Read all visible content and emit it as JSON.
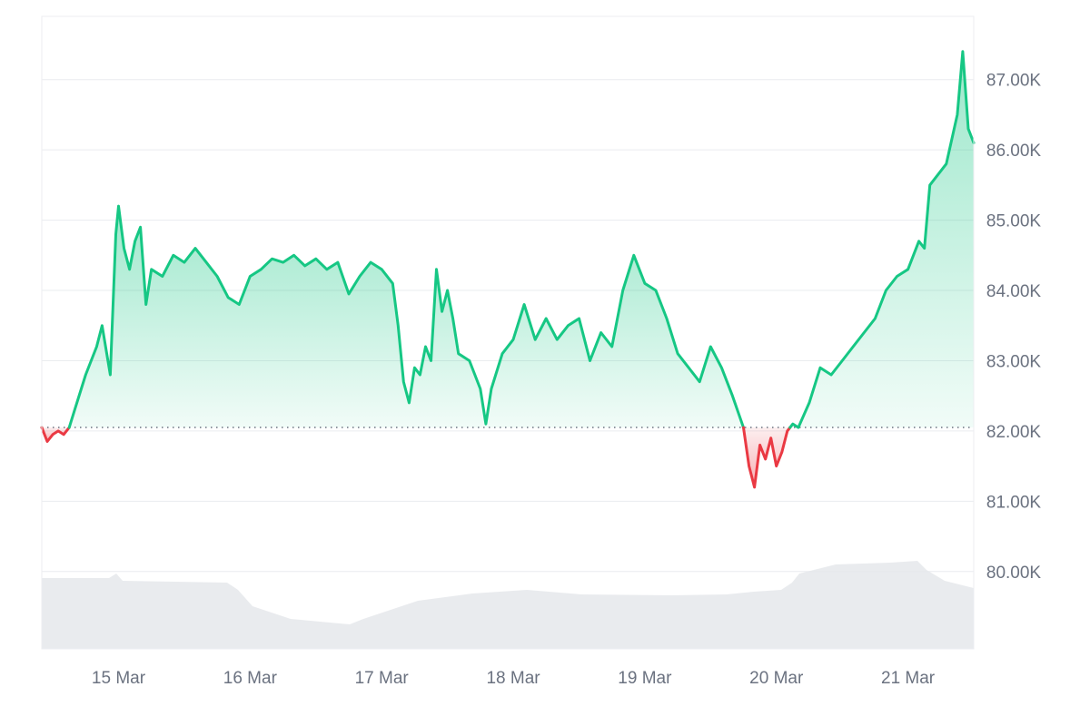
{
  "chart_data": {
    "type": "area",
    "title": "",
    "xlabel": "",
    "ylabel": "",
    "x_ticks": [
      "15 Mar",
      "16 Mar",
      "17 Mar",
      "18 Mar",
      "19 Mar",
      "20 Mar",
      "21 Mar"
    ],
    "y_ticks": [
      "80.00K",
      "81.00K",
      "82.00K",
      "83.00K",
      "84.00K",
      "85.00K",
      "86.00K",
      "87.00K"
    ],
    "y_tick_values": [
      80000,
      81000,
      82000,
      83000,
      84000,
      85000,
      86000,
      87000
    ],
    "ylim": [
      78900,
      87900
    ],
    "x_domain": [
      "2025-03-14 10:00",
      "2025-03-21 12:00"
    ],
    "reference_price": 82050,
    "reference_line": "dotted",
    "grid": "horizontal",
    "axis_position": "right",
    "colors": {
      "above": "#16c784",
      "below": "#ea3943",
      "volume": "#e5e7eb",
      "grid": "#eaecef",
      "reference": "#9ca3af"
    },
    "series": [
      {
        "values": [
          [
            "2025-03-14 10:00",
            82050
          ],
          [
            "2025-03-14 11:00",
            81850
          ],
          [
            "2025-03-14 12:00",
            81950
          ],
          [
            "2025-03-14 13:00",
            82000
          ],
          [
            "2025-03-14 14:00",
            81950
          ],
          [
            "2025-03-14 15:00",
            82050
          ],
          [
            "2025-03-14 16:00",
            82300
          ],
          [
            "2025-03-14 18:00",
            82800
          ],
          [
            "2025-03-14 20:00",
            83200
          ],
          [
            "2025-03-14 21:00",
            83500
          ],
          [
            "2025-03-14 22:30",
            82800
          ],
          [
            "2025-03-14 23:30",
            84800
          ],
          [
            "2025-03-15 00:00",
            85200
          ],
          [
            "2025-03-15 01:00",
            84600
          ],
          [
            "2025-03-15 02:00",
            84300
          ],
          [
            "2025-03-15 03:00",
            84700
          ],
          [
            "2025-03-15 04:00",
            84900
          ],
          [
            "2025-03-15 05:00",
            83800
          ],
          [
            "2025-03-15 06:00",
            84300
          ],
          [
            "2025-03-15 08:00",
            84200
          ],
          [
            "2025-03-15 10:00",
            84500
          ],
          [
            "2025-03-15 12:00",
            84400
          ],
          [
            "2025-03-15 14:00",
            84600
          ],
          [
            "2025-03-15 16:00",
            84400
          ],
          [
            "2025-03-15 18:00",
            84200
          ],
          [
            "2025-03-15 20:00",
            83900
          ],
          [
            "2025-03-15 22:00",
            83800
          ],
          [
            "2025-03-16 00:00",
            84200
          ],
          [
            "2025-03-16 02:00",
            84300
          ],
          [
            "2025-03-16 04:00",
            84450
          ],
          [
            "2025-03-16 06:00",
            84400
          ],
          [
            "2025-03-16 08:00",
            84500
          ],
          [
            "2025-03-16 10:00",
            84350
          ],
          [
            "2025-03-16 12:00",
            84450
          ],
          [
            "2025-03-16 14:00",
            84300
          ],
          [
            "2025-03-16 16:00",
            84400
          ],
          [
            "2025-03-16 18:00",
            83950
          ],
          [
            "2025-03-16 20:00",
            84200
          ],
          [
            "2025-03-16 22:00",
            84400
          ],
          [
            "2025-03-17 00:00",
            84300
          ],
          [
            "2025-03-17 02:00",
            84100
          ],
          [
            "2025-03-17 03:00",
            83500
          ],
          [
            "2025-03-17 04:00",
            82700
          ],
          [
            "2025-03-17 05:00",
            82400
          ],
          [
            "2025-03-17 06:00",
            82900
          ],
          [
            "2025-03-17 07:00",
            82800
          ],
          [
            "2025-03-17 08:00",
            83200
          ],
          [
            "2025-03-17 09:00",
            83000
          ],
          [
            "2025-03-17 10:00",
            84300
          ],
          [
            "2025-03-17 11:00",
            83700
          ],
          [
            "2025-03-17 12:00",
            84000
          ],
          [
            "2025-03-17 13:00",
            83600
          ],
          [
            "2025-03-17 14:00",
            83100
          ],
          [
            "2025-03-17 16:00",
            83000
          ],
          [
            "2025-03-17 18:00",
            82600
          ],
          [
            "2025-03-17 19:00",
            82100
          ],
          [
            "2025-03-17 20:00",
            82600
          ],
          [
            "2025-03-17 22:00",
            83100
          ],
          [
            "2025-03-18 00:00",
            83300
          ],
          [
            "2025-03-18 02:00",
            83800
          ],
          [
            "2025-03-18 04:00",
            83300
          ],
          [
            "2025-03-18 06:00",
            83600
          ],
          [
            "2025-03-18 08:00",
            83300
          ],
          [
            "2025-03-18 10:00",
            83500
          ],
          [
            "2025-03-18 12:00",
            83600
          ],
          [
            "2025-03-18 14:00",
            83000
          ],
          [
            "2025-03-18 16:00",
            83400
          ],
          [
            "2025-03-18 18:00",
            83200
          ],
          [
            "2025-03-18 20:00",
            84000
          ],
          [
            "2025-03-18 22:00",
            84500
          ],
          [
            "2025-03-19 00:00",
            84100
          ],
          [
            "2025-03-19 02:00",
            84000
          ],
          [
            "2025-03-19 04:00",
            83600
          ],
          [
            "2025-03-19 06:00",
            83100
          ],
          [
            "2025-03-19 08:00",
            82900
          ],
          [
            "2025-03-19 10:00",
            82700
          ],
          [
            "2025-03-19 12:00",
            83200
          ],
          [
            "2025-03-19 14:00",
            82900
          ],
          [
            "2025-03-19 16:00",
            82500
          ],
          [
            "2025-03-19 18:00",
            82050
          ],
          [
            "2025-03-19 19:00",
            81500
          ],
          [
            "2025-03-19 20:00",
            81200
          ],
          [
            "2025-03-19 21:00",
            81800
          ],
          [
            "2025-03-19 22:00",
            81600
          ],
          [
            "2025-03-19 23:00",
            81900
          ],
          [
            "2025-03-20 00:00",
            81500
          ],
          [
            "2025-03-20 01:00",
            81700
          ],
          [
            "2025-03-20 02:00",
            82000
          ],
          [
            "2025-03-20 03:00",
            82100
          ],
          [
            "2025-03-20 04:00",
            82050
          ],
          [
            "2025-03-20 06:00",
            82400
          ],
          [
            "2025-03-20 08:00",
            82900
          ],
          [
            "2025-03-20 10:00",
            82800
          ],
          [
            "2025-03-20 12:00",
            83000
          ],
          [
            "2025-03-20 14:00",
            83200
          ],
          [
            "2025-03-20 16:00",
            83400
          ],
          [
            "2025-03-20 18:00",
            83600
          ],
          [
            "2025-03-20 20:00",
            84000
          ],
          [
            "2025-03-20 22:00",
            84200
          ],
          [
            "2025-03-21 00:00",
            84300
          ],
          [
            "2025-03-21 02:00",
            84700
          ],
          [
            "2025-03-21 03:00",
            84600
          ],
          [
            "2025-03-21 04:00",
            85500
          ],
          [
            "2025-03-21 05:00",
            85600
          ],
          [
            "2025-03-21 07:00",
            85800
          ],
          [
            "2025-03-21 09:00",
            86500
          ],
          [
            "2025-03-21 10:00",
            87400
          ],
          [
            "2025-03-21 11:00",
            86300
          ],
          [
            "2025-03-21 12:00",
            86100
          ]
        ]
      }
    ]
  }
}
